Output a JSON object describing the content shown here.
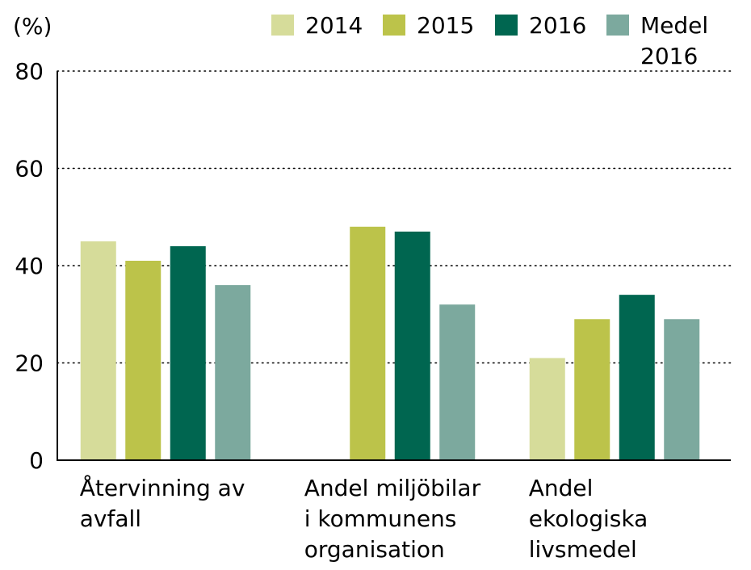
{
  "chart_data": {
    "type": "bar",
    "ylabel": "(%)",
    "ylim": [
      0,
      80
    ],
    "yticks": [
      "0",
      "20",
      "40",
      "60",
      "80"
    ],
    "grid": "horizontal dotted",
    "legend_position": "top-right",
    "categories": [
      [
        "Återvinning av",
        "avfall"
      ],
      [
        "Andel miljöbilar",
        "i kommunens",
        "organisation"
      ],
      [
        "Andel",
        "ekologiska",
        "livsmedel"
      ]
    ],
    "series": [
      {
        "name": "2014",
        "label_lines": [
          "2014"
        ],
        "color": "#d6dc9a",
        "values": [
          45,
          null,
          21
        ]
      },
      {
        "name": "2015",
        "label_lines": [
          "2015"
        ],
        "color": "#bcc34a",
        "values": [
          41,
          48,
          29
        ]
      },
      {
        "name": "2016",
        "label_lines": [
          "2016"
        ],
        "color": "#006650",
        "values": [
          44,
          47,
          34
        ]
      },
      {
        "name": "Medel 2016",
        "label_lines": [
          "Medel",
          "2016"
        ],
        "color": "#7ca99e",
        "values": [
          36,
          32,
          29
        ]
      }
    ]
  }
}
